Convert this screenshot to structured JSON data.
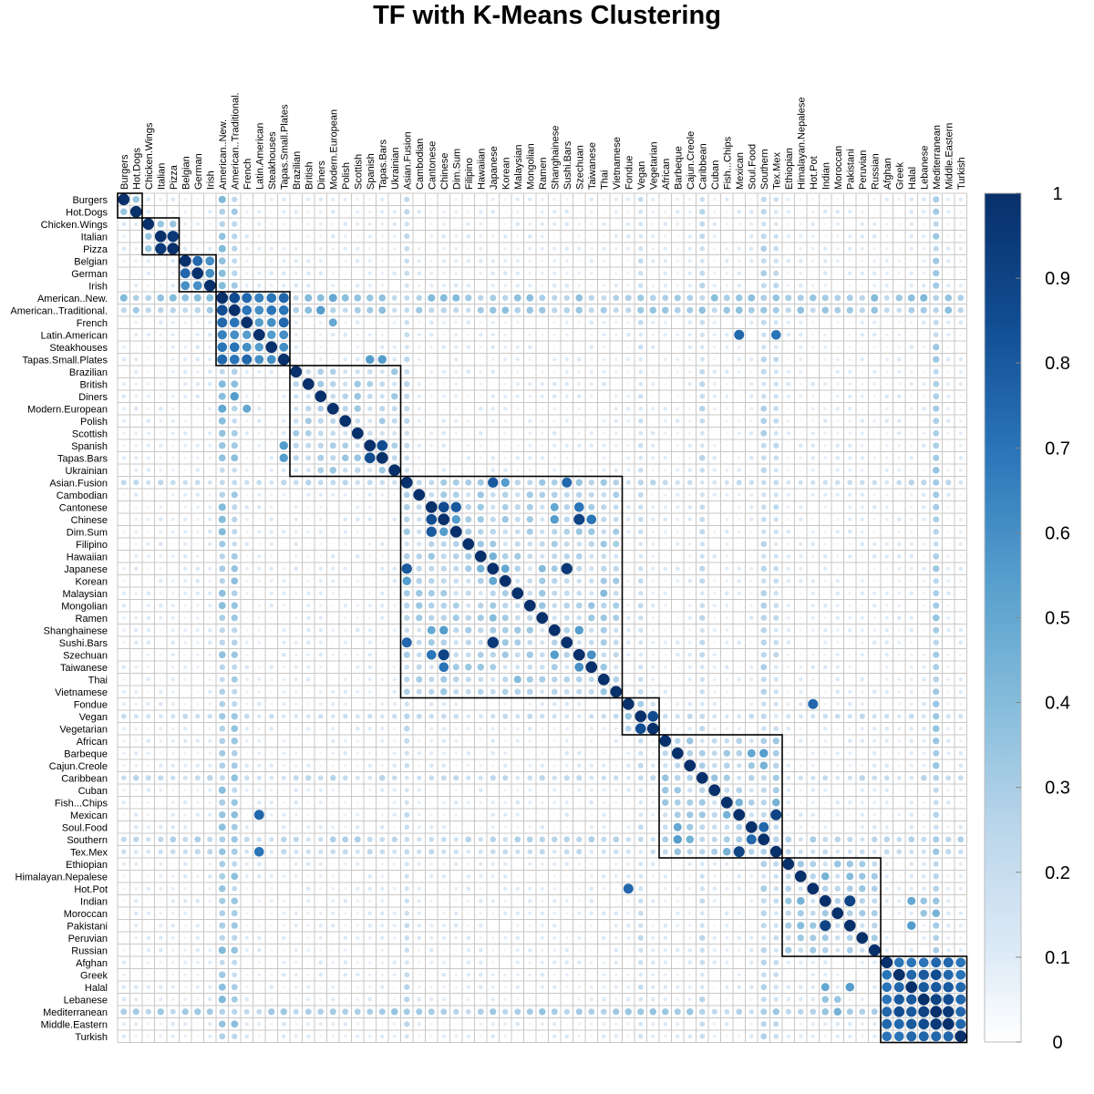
{
  "chart_data": {
    "type": "heatmap",
    "title": "TF with K-Means Clustering",
    "labels": [
      "Burgers",
      "Hot.Dogs",
      "Chicken.Wings",
      "Italian",
      "Pizza",
      "Belgian",
      "German",
      "Irish",
      "American..New.",
      "American..Traditional.",
      "French",
      "Latin.American",
      "Steakhouses",
      "Tapas.Small.Plates",
      "Brazilian",
      "British",
      "Diners",
      "Modern.European",
      "Polish",
      "Scottish",
      "Spanish",
      "Tapas.Bars",
      "Ukrainian",
      "Asian.Fusion",
      "Cambodian",
      "Cantonese",
      "Chinese",
      "Dim.Sum",
      "Filipino",
      "Hawaiian",
      "Japanese",
      "Korean",
      "Malaysian",
      "Mongolian",
      "Ramen",
      "Shanghainese",
      "Sushi.Bars",
      "Szechuan",
      "Taiwanese",
      "Thai",
      "Vietnamese",
      "Fondue",
      "Vegan",
      "Vegetarian",
      "African",
      "Barbeque",
      "Cajun.Creole",
      "Caribbean",
      "Cuban",
      "Fish...Chips",
      "Mexican",
      "Soul.Food",
      "Southern",
      "Tex.Mex",
      "Ethiopian",
      "Himalayan.Nepalese",
      "Hot.Pot",
      "Indian",
      "Moroccan",
      "Pakistani",
      "Peruvian",
      "Russian",
      "Afghan",
      "Greek",
      "Halal",
      "Lebanese",
      "Mediterranean",
      "Middle.Eastern",
      "Turkish"
    ],
    "clusters": [
      [
        0,
        1
      ],
      [
        2,
        4
      ],
      [
        5,
        7
      ],
      [
        8,
        13
      ],
      [
        14,
        22
      ],
      [
        23,
        40
      ],
      [
        41,
        43
      ],
      [
        44,
        53
      ],
      [
        54,
        61
      ],
      [
        62,
        68
      ]
    ],
    "high_pairs": [
      [
        "Burgers",
        "Hot.Dogs",
        0.35
      ],
      [
        "Chicken.Wings",
        "Italian",
        0.35
      ],
      [
        "Chicken.Wings",
        "Pizza",
        0.35
      ],
      [
        "Italian",
        "Pizza",
        0.95
      ],
      [
        "Belgian",
        "German",
        0.75
      ],
      [
        "Belgian",
        "Irish",
        0.6
      ],
      [
        "German",
        "Irish",
        0.6
      ],
      [
        "American..New.",
        "American..Traditional.",
        0.85
      ],
      [
        "American..New.",
        "French",
        0.75
      ],
      [
        "American..New.",
        "Latin.American",
        0.65
      ],
      [
        "American..New.",
        "Steakhouses",
        0.7
      ],
      [
        "American..New.",
        "Tapas.Small.Plates",
        0.75
      ],
      [
        "American..Traditional.",
        "French",
        0.7
      ],
      [
        "American..Traditional.",
        "Latin.American",
        0.6
      ],
      [
        "American..Traditional.",
        "Steakhouses",
        0.7
      ],
      [
        "American..Traditional.",
        "Tapas.Small.Plates",
        0.7
      ],
      [
        "French",
        "Latin.American",
        0.55
      ],
      [
        "French",
        "Steakhouses",
        0.6
      ],
      [
        "French",
        "Tapas.Small.Plates",
        0.75
      ],
      [
        "Latin.American",
        "Steakhouses",
        0.55
      ],
      [
        "Latin.American",
        "Tapas.Small.Plates",
        0.6
      ],
      [
        "Steakhouses",
        "Tapas.Small.Plates",
        0.6
      ],
      [
        "Latin.American",
        "Mexican",
        0.75
      ],
      [
        "Latin.American",
        "Tex.Mex",
        0.7
      ],
      [
        "Spanish",
        "Tapas.Bars",
        0.85
      ],
      [
        "Tapas.Small.Plates",
        "Tapas.Bars",
        0.55
      ],
      [
        "Tapas.Small.Plates",
        "Spanish",
        0.55
      ],
      [
        "American..Traditional.",
        "Diners",
        0.55
      ],
      [
        "American..New.",
        "Modern.European",
        0.5
      ],
      [
        "French",
        "Modern.European",
        0.5
      ],
      [
        "Asian.Fusion",
        "Japanese",
        0.8
      ],
      [
        "Asian.Fusion",
        "Korean",
        0.55
      ],
      [
        "Asian.Fusion",
        "Sushi.Bars",
        0.75
      ],
      [
        "Japanese",
        "Sushi.Bars",
        0.95
      ],
      [
        "Cantonese",
        "Chinese",
        0.85
      ],
      [
        "Cantonese",
        "Dim.Sum",
        0.8
      ],
      [
        "Chinese",
        "Dim.Sum",
        0.55
      ],
      [
        "Chinese",
        "Szechuan",
        0.9
      ],
      [
        "Chinese",
        "Taiwanese",
        0.7
      ],
      [
        "Cantonese",
        "Szechuan",
        0.7
      ],
      [
        "Szechuan",
        "Taiwanese",
        0.6
      ],
      [
        "Chinese",
        "Shanghainese",
        0.55
      ],
      [
        "Cantonese",
        "Shanghainese",
        0.5
      ],
      [
        "Szechuan",
        "Shanghainese",
        0.55
      ],
      [
        "Korean",
        "Japanese",
        0.5
      ],
      [
        "Hawaiian",
        "Japanese",
        0.45
      ],
      [
        "Malaysian",
        "Thai",
        0.4
      ],
      [
        "Ramen",
        "Japanese",
        0.4
      ],
      [
        "Fondue",
        "Hot.Pot",
        0.75
      ],
      [
        "Vegan",
        "Vegetarian",
        0.85
      ],
      [
        "Mexican",
        "Tex.Mex",
        0.9
      ],
      [
        "Barbeque",
        "Southern",
        0.55
      ],
      [
        "Barbeque",
        "Soul.Food",
        0.5
      ],
      [
        "Soul.Food",
        "Southern",
        0.75
      ],
      [
        "Cajun.Creole",
        "Southern",
        0.45
      ],
      [
        "Fish...Chips",
        "Mexican",
        0.45
      ],
      [
        "Fish...Chips",
        "Tex.Mex",
        0.45
      ],
      [
        "Indian",
        "Pakistani",
        0.9
      ],
      [
        "Indian",
        "Himalayan.Nepalese",
        0.45
      ],
      [
        "Himalayan.Nepalese",
        "Pakistani",
        0.4
      ],
      [
        "Indian",
        "Halal",
        0.5
      ],
      [
        "Pakistani",
        "Halal",
        0.55
      ],
      [
        "Indian",
        "Lebanese",
        0.35
      ],
      [
        "Afghan",
        "Greek",
        0.7
      ],
      [
        "Afghan",
        "Halal",
        0.7
      ],
      [
        "Afghan",
        "Lebanese",
        0.7
      ],
      [
        "Afghan",
        "Mediterranean",
        0.75
      ],
      [
        "Afghan",
        "Middle.Eastern",
        0.75
      ],
      [
        "Afghan",
        "Turkish",
        0.7
      ],
      [
        "Greek",
        "Halal",
        0.75
      ],
      [
        "Greek",
        "Lebanese",
        0.8
      ],
      [
        "Greek",
        "Mediterranean",
        0.85
      ],
      [
        "Greek",
        "Middle.Eastern",
        0.75
      ],
      [
        "Greek",
        "Turkish",
        0.7
      ],
      [
        "Halal",
        "Lebanese",
        0.8
      ],
      [
        "Halal",
        "Mediterranean",
        0.8
      ],
      [
        "Halal",
        "Middle.Eastern",
        0.8
      ],
      [
        "Halal",
        "Turkish",
        0.75
      ],
      [
        "Lebanese",
        "Mediterranean",
        0.9
      ],
      [
        "Lebanese",
        "Middle.Eastern",
        0.85
      ],
      [
        "Lebanese",
        "Turkish",
        0.75
      ],
      [
        "Mediterranean",
        "Middle.Eastern",
        0.95
      ],
      [
        "Mediterranean",
        "Turkish",
        0.75
      ],
      [
        "Middle.Eastern",
        "Turkish",
        0.75
      ],
      [
        "Moroccan",
        "Mediterranean",
        0.45
      ],
      [
        "Moroccan",
        "Lebanese",
        0.35
      ]
    ],
    "hub_rows": {
      "American..New.": 0.35,
      "American..Traditional.": 0.32,
      "Mediterranean": 0.3,
      "Caribbean": 0.22,
      "Southern": 0.25,
      "Tex.Mex": 0.2,
      "Vegan": 0.2,
      "Asian.Fusion": 0.22
    },
    "color_scale": {
      "min": 0,
      "max": 1,
      "low_color": "#ffffff",
      "mid_color": "#6aaed6",
      "high_color": "#08306b"
    },
    "colorbar_ticks": [
      "0",
      "0.1",
      "0.2",
      "0.3",
      "0.4",
      "0.5",
      "0.6",
      "0.7",
      "0.8",
      "0.9",
      "1"
    ]
  }
}
